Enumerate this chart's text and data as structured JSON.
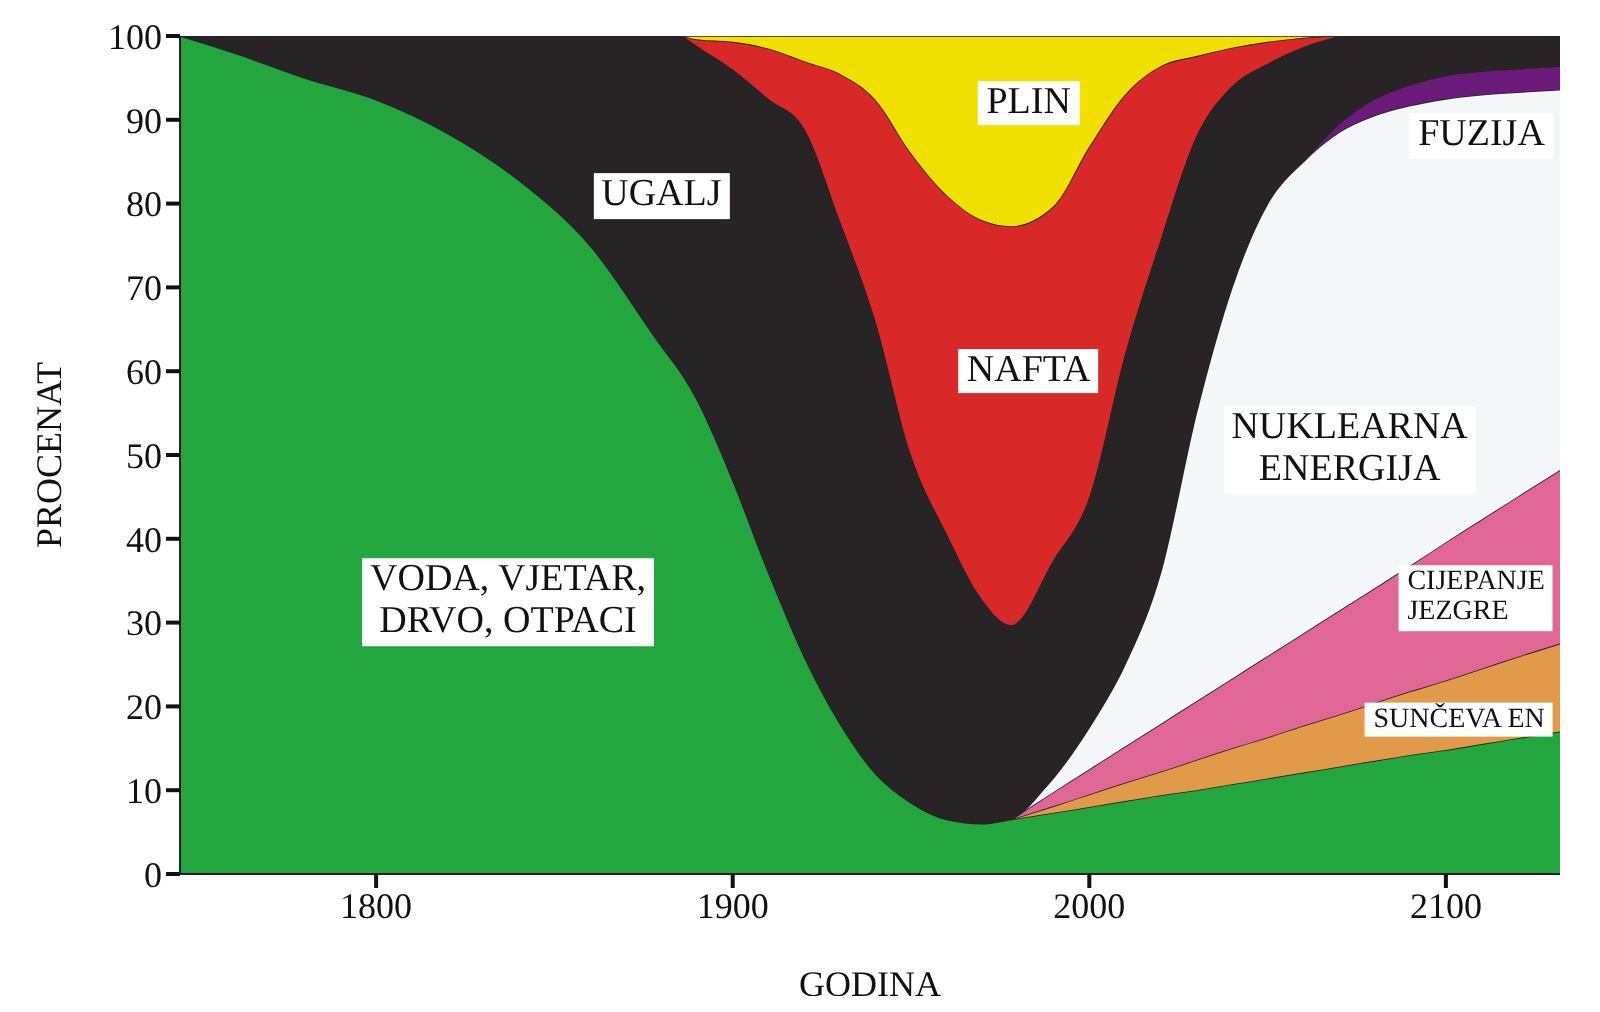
{
  "chart_data": {
    "type": "area",
    "stacked": true,
    "xlabel": "GODINA",
    "ylabel": "PROCENAT",
    "x": [
      1745,
      1760,
      1780,
      1800,
      1820,
      1840,
      1860,
      1880,
      1886,
      1890,
      1900,
      1910,
      1920,
      1930,
      1940,
      1950,
      1960,
      1970,
      1978,
      1990,
      2000,
      2010,
      2020,
      2030,
      2040,
      2050,
      2060,
      2070,
      2080,
      2090,
      2100,
      2110,
      2120,
      2132
    ],
    "series": [
      {
        "name": "VODA, VJETAR, DRVO, OTPACI",
        "color": "#22a63d",
        "values": [
          100,
          98,
          95,
          92.4,
          88.4,
          82.8,
          75,
          63,
          59.5,
          56.6,
          47,
          36,
          26,
          18,
          12,
          8.5,
          6.5,
          6,
          6.5,
          7.3,
          8,
          8.7,
          9.4,
          10,
          10.7,
          11.4,
          12.1,
          12.8,
          13.5,
          14.2,
          14.8,
          15.5,
          16.2,
          17
        ]
      },
      {
        "name": "SUNČEVA EN",
        "color": "#e09a4a",
        "values": [
          null,
          null,
          null,
          null,
          null,
          null,
          null,
          null,
          null,
          null,
          null,
          null,
          null,
          null,
          null,
          null,
          null,
          null,
          0,
          0.8,
          1.5,
          2.2,
          2.8,
          3.6,
          4.3,
          4.9,
          5.6,
          6.2,
          6.9,
          7.6,
          8.3,
          9,
          9.7,
          10.5
        ]
      },
      {
        "name": "CIJEPANJE JEZGRE",
        "color": "#e06795",
        "values": [
          null,
          null,
          null,
          null,
          null,
          null,
          null,
          null,
          null,
          null,
          null,
          null,
          null,
          null,
          null,
          null,
          null,
          null,
          0,
          1.7,
          3,
          4.3,
          5.7,
          7,
          8.3,
          9.7,
          11,
          12.4,
          13.7,
          15,
          16.5,
          17.8,
          19.1,
          20.7
        ]
      },
      {
        "name": "NUKLEARNA ENERGIJA",
        "color": "#f3f7f7",
        "values": [
          null,
          null,
          null,
          null,
          null,
          null,
          null,
          null,
          null,
          null,
          null,
          null,
          null,
          null,
          null,
          null,
          null,
          null,
          0,
          1.7,
          5,
          9.8,
          18.1,
          34.4,
          46.7,
          54,
          56.3,
          57.1,
          56.4,
          54.9,
          52.9,
          50.7,
          48.3,
          45.4
        ]
      },
      {
        "name": "FUZIJA",
        "color": "#6a1b7a",
        "values": [
          null,
          null,
          null,
          null,
          null,
          null,
          null,
          null,
          null,
          null,
          null,
          null,
          null,
          null,
          null,
          null,
          null,
          null,
          null,
          null,
          null,
          null,
          null,
          null,
          null,
          null,
          0,
          1,
          2,
          2.5,
          2.8,
          2.8,
          2.8,
          2.8
        ]
      },
      {
        "name": "UGALJ",
        "color": "#282425",
        "values": [
          0,
          2,
          5,
          7.6,
          11.6,
          17.2,
          25,
          37,
          40.5,
          42.2,
          49,
          56.5,
          63,
          60,
          54,
          41.5,
          34.1,
          26.7,
          23.2,
          26,
          27.5,
          37,
          39.7,
          33,
          24,
          16.7,
          13.7,
          10.5,
          7.5,
          5.8,
          4.7,
          4.2,
          3.9,
          3.6
        ]
      },
      {
        "name": "NAFTA",
        "color": "#d92828",
        "values": [
          null,
          null,
          null,
          null,
          null,
          null,
          null,
          null,
          0,
          0.8,
          3.3,
          6,
          8,
          17.5,
          26.4,
          36,
          40.4,
          45.3,
          47.6,
          42.2,
          41.8,
          31,
          20.7,
          9.6,
          4.6,
          2.6,
          1.1,
          0,
          null,
          null,
          null,
          null,
          null,
          null
        ]
      },
      {
        "name": "PLIN",
        "color": "#f0e000",
        "values": [
          null,
          null,
          null,
          null,
          null,
          null,
          null,
          null,
          0,
          0.4,
          0.7,
          1.5,
          3,
          4.5,
          7.6,
          14,
          19,
          22,
          22.7,
          20.3,
          13.2,
          7,
          3.6,
          2.4,
          1.4,
          0.7,
          0.2,
          0,
          null,
          null,
          null,
          null,
          null,
          null
        ]
      }
    ],
    "xlim": [
      1745,
      2132
    ],
    "xticks": [
      1800,
      1900,
      2000,
      2100
    ],
    "ylim": [
      0,
      100
    ],
    "yticks": [
      0,
      10,
      20,
      30,
      40,
      50,
      60,
      70,
      80,
      90,
      100
    ]
  }
}
